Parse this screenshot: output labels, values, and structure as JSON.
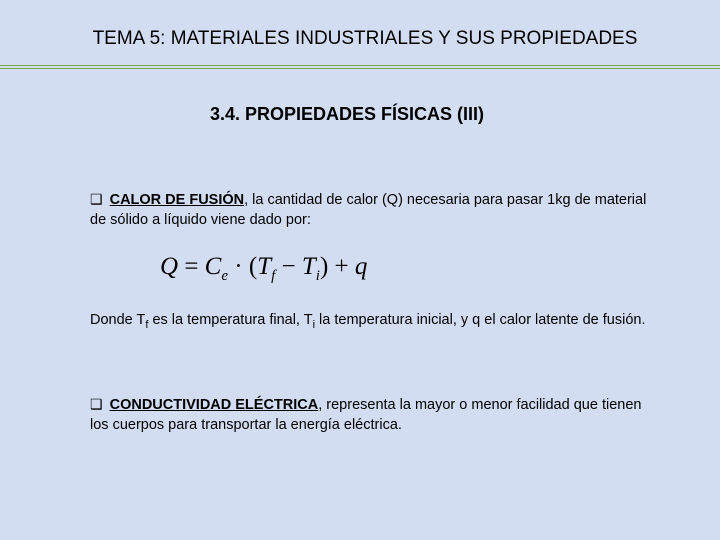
{
  "colors": {
    "background": "#d3ddf2",
    "line_border": "#7aa843",
    "line_fill": "#d3ddf2",
    "text": "#000000"
  },
  "title": "TEMA 5: MATERIALES INDUSTRIALES Y SUS PROPIEDADES",
  "section": "3.4. PROPIEDADES FÍSICAS (III)",
  "bullet_glyph": "❑",
  "item1": {
    "heading": "CALOR DE FUSIÓN",
    "text": ", la cantidad de calor (Q) necesaria para pasar 1kg de material de sólido a líquido viene dado por:"
  },
  "equation": {
    "Q": "Q",
    "eq": " = ",
    "Ce": "C",
    "Ce_sub": "e",
    "dot": " · ",
    "lp": "(",
    "Tf": "T",
    "Tf_sub": "f",
    "minus": " − ",
    "Ti": "T",
    "Ti_sub": "i",
    "rp": ")",
    "plus": " + ",
    "q": "q"
  },
  "item1_followup": {
    "pre": "Donde T",
    "sub1": "f",
    "mid1": " es la temperatura final, T",
    "sub2": "i",
    "rest": " la temperatura inicial, y q el calor latente de fusión."
  },
  "item2": {
    "heading": "CONDUCTIVIDAD ELÉCTRICA",
    "text": ", representa la mayor o menor facilidad que tienen los cuerpos para transportar la energía eléctrica."
  }
}
